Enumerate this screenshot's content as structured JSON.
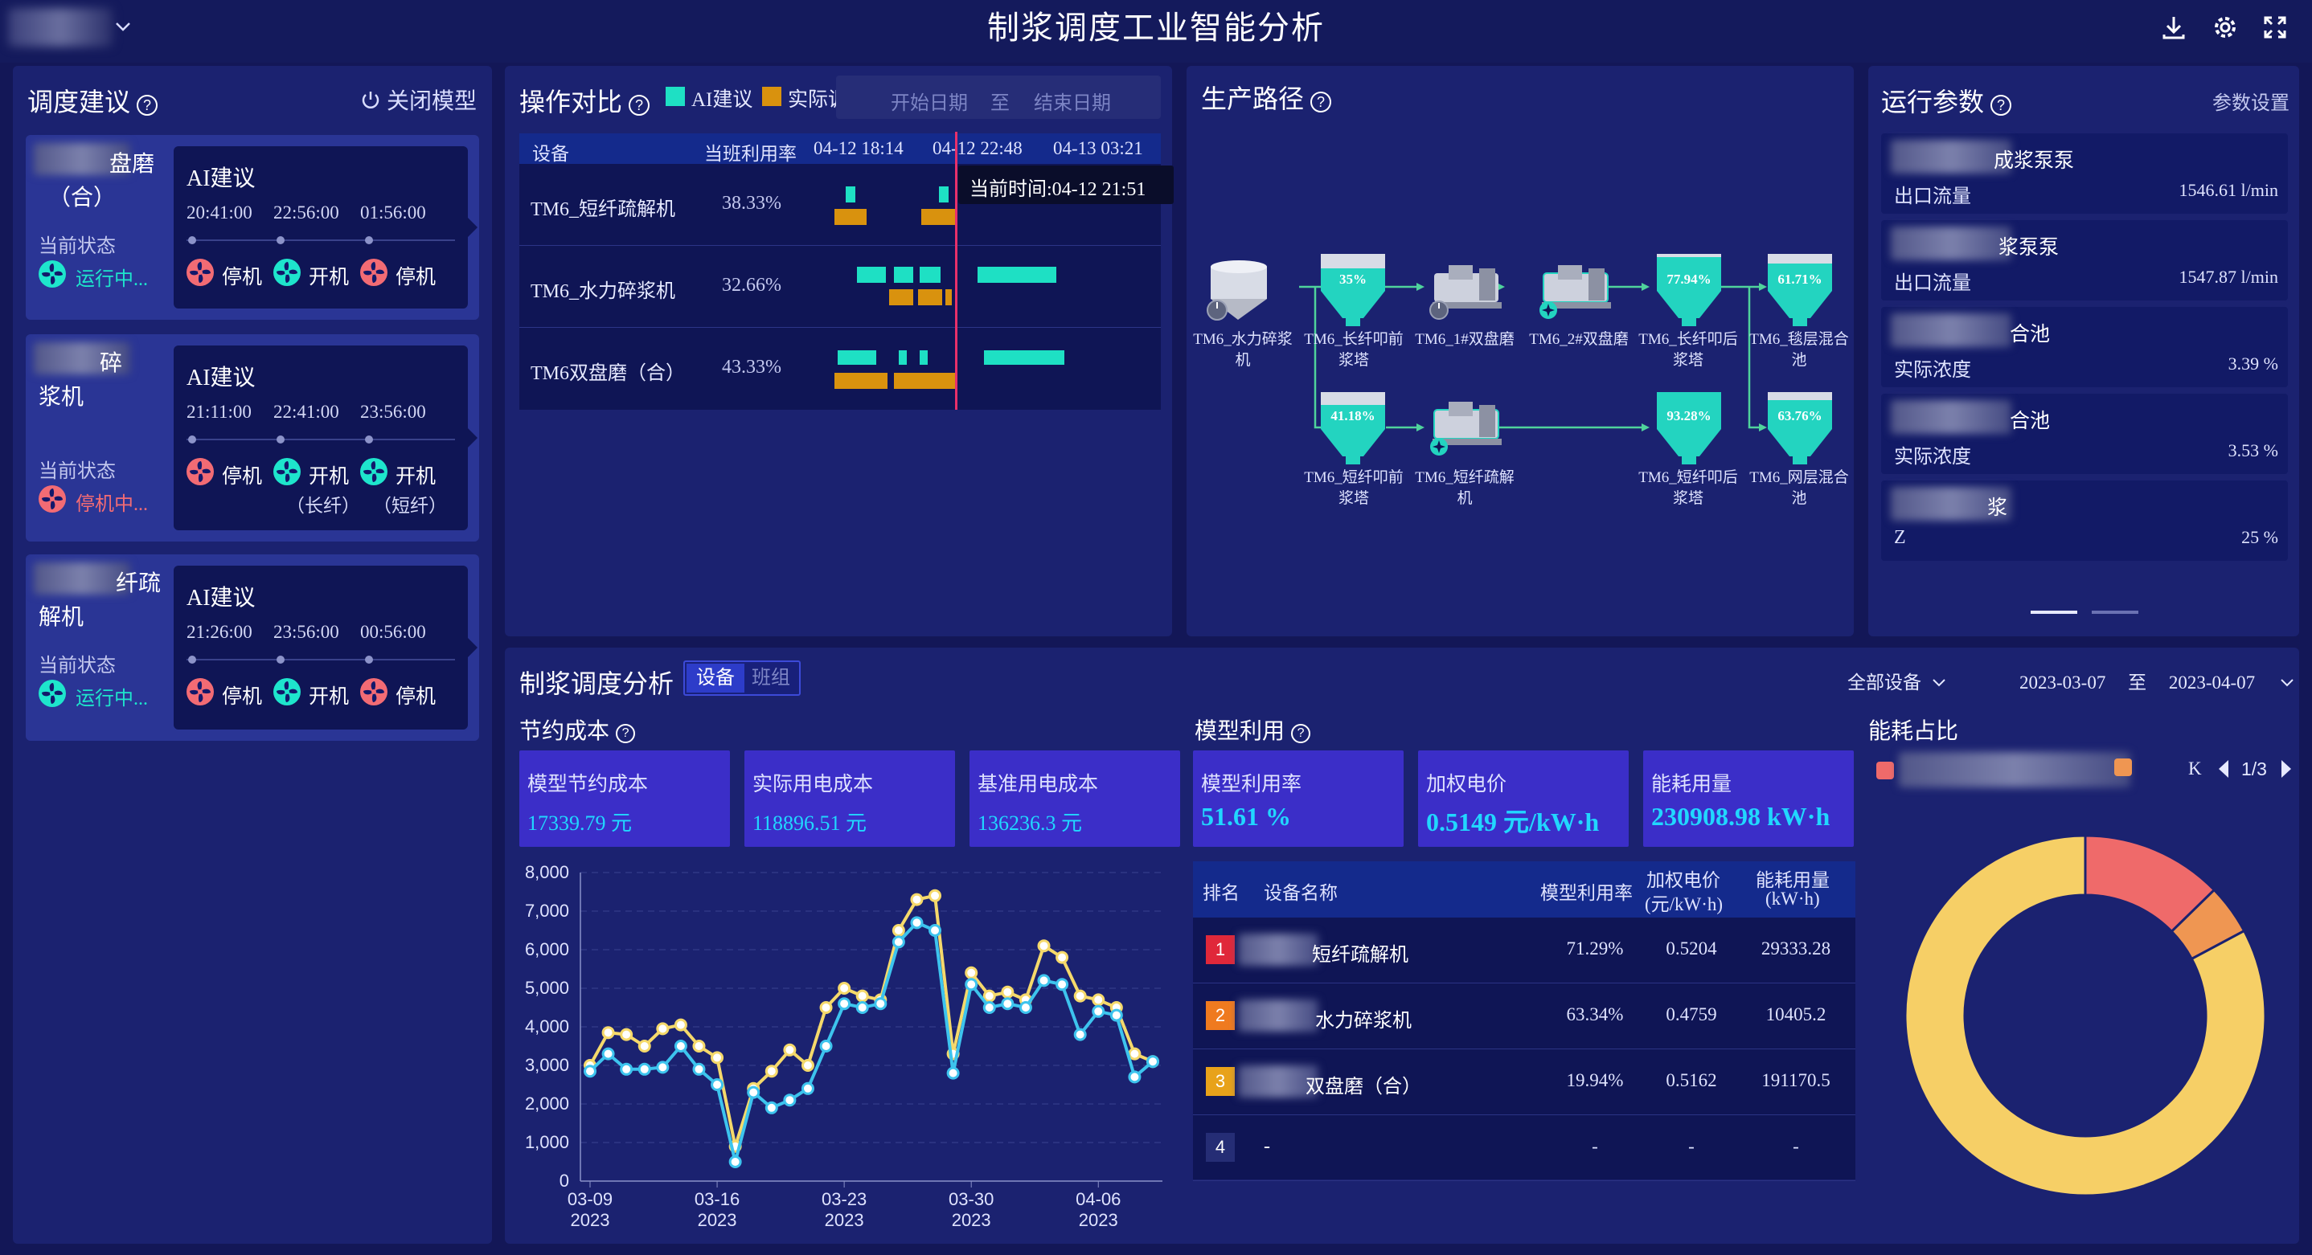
{
  "header": {
    "title": "制浆调度工业智能分析",
    "icons": [
      "download-icon",
      "gear-icon",
      "fullscreen-icon"
    ]
  },
  "dispatch": {
    "title": "调度建议",
    "close_model": "关闭模型",
    "cards": [
      {
        "name_line1": "盘磨",
        "name_line2": "（合）",
        "status_label": "当前状态",
        "status": "运行中...",
        "status_color": "#1ee5cc",
        "ai_label": "AI建议",
        "times": [
          "20:41:00",
          "22:56:00",
          "01:56:00"
        ],
        "actions": [
          {
            "label": "停机",
            "kind": "stop"
          },
          {
            "label": "开机",
            "kind": "start"
          },
          {
            "label": "停机",
            "kind": "stop"
          }
        ]
      },
      {
        "name_line1": "碎",
        "name_line2": "浆机",
        "status_label": "当前状态",
        "status": "停机中...",
        "status_color": "#f26b74",
        "ai_label": "AI建议",
        "times": [
          "21:11:00",
          "22:41:00",
          "23:56:00"
        ],
        "actions": [
          {
            "label": "停机",
            "kind": "stop",
            "sub": ""
          },
          {
            "label": "开机",
            "kind": "start",
            "sub": "（长纤）"
          },
          {
            "label": "开机",
            "kind": "start",
            "sub": "（短纤）"
          }
        ]
      },
      {
        "name_line1": "纤疏",
        "name_line2": "解机",
        "status_label": "当前状态",
        "status": "运行中...",
        "status_color": "#1ee5cc",
        "ai_label": "AI建议",
        "times": [
          "21:26:00",
          "23:56:00",
          "00:56:00"
        ],
        "actions": [
          {
            "label": "停机",
            "kind": "stop"
          },
          {
            "label": "开机",
            "kind": "start"
          },
          {
            "label": "停机",
            "kind": "stop"
          }
        ]
      }
    ]
  },
  "opcompare": {
    "title": "操作对比",
    "legend_ai": "AI建议",
    "legend_actual": "实际调度",
    "start_date": "开始日期",
    "to": "至",
    "end_date": "结束日期",
    "col_device": "设备",
    "col_util": "当班利用率",
    "time_ticks": [
      "04-12 18:14",
      "04-12 22:48",
      "04-13 03:21"
    ],
    "tooltip": "当前时间:04-12 21:51",
    "rows": [
      {
        "device": "TM6_短纤疏解机",
        "util": "38.33%"
      },
      {
        "device": "TM6_水力碎浆机",
        "util": "32.66%"
      },
      {
        "device": "TM6双盘磨（合）",
        "util": "43.33%"
      }
    ]
  },
  "path": {
    "title": "生产路径",
    "nodes": [
      {
        "label1": "TM6_水力碎浆",
        "label2": "机"
      },
      {
        "label1": "TM6_长纤叩前",
        "label2": "浆塔",
        "pct": "35%"
      },
      {
        "label1": "TM6_1#双盘磨",
        "label2": ""
      },
      {
        "label1": "TM6_2#双盘磨",
        "label2": ""
      },
      {
        "label1": "TM6_长纤叩后",
        "label2": "浆塔",
        "pct": "77.94%"
      },
      {
        "label1": "TM6_毯层混合",
        "label2": "池",
        "pct": "61.71%"
      },
      {
        "label1": "TM6_短纤叩前",
        "label2": "浆塔",
        "pct": "41.18%"
      },
      {
        "label1": "TM6_短纤疏解",
        "label2": "机"
      },
      {
        "label1": "TM6_短纤叩后",
        "label2": "浆塔",
        "pct": "93.28%"
      },
      {
        "label1": "TM6_网层混合",
        "label2": "池",
        "pct": "63.76%"
      }
    ]
  },
  "params": {
    "title": "运行参数",
    "settings": "参数设置",
    "items": [
      {
        "name": "成浆泵泵",
        "key": "出口流量",
        "value": "1546.61 l/min"
      },
      {
        "name": "浆泵泵",
        "key": "出口流量",
        "value": "1547.87 l/min"
      },
      {
        "name": "合池",
        "key": "实际浓度",
        "value": "3.39 %"
      },
      {
        "name": "合池",
        "key": "实际浓度",
        "value": "3.53 %"
      },
      {
        "name": "浆",
        "key": "Z",
        "value": "25 %"
      }
    ]
  },
  "analysis": {
    "title": "制浆调度分析",
    "tab_device": "设备",
    "tab_shift": "班组",
    "filter_device": "全部设备",
    "date_from": "2023-03-07",
    "date_to_label": "至",
    "date_to": "2023-04-07",
    "saving_title": "节约成本",
    "saving_stats": [
      {
        "label": "模型节约成本",
        "value": "17339.79 元"
      },
      {
        "label": "实际用电成本",
        "value": "118896.51 元"
      },
      {
        "label": "基准用电成本",
        "value": "136236.3 元"
      }
    ],
    "model_title": "模型利用",
    "model_stats": [
      {
        "label": "模型利用率",
        "value": "51.61 %"
      },
      {
        "label": "加权电价",
        "value": "0.5149 元/kW·h"
      },
      {
        "label": "能耗用量",
        "value": "230908.98 kW·h"
      }
    ],
    "rank_cols": {
      "rank": "排名",
      "name": "设备名称",
      "util": "模型利用率",
      "price1": "加权电价",
      "price2": "(元/kW·h)",
      "energy1": "能耗用量",
      "energy2": "(kW·h)"
    },
    "rank_rows": [
      {
        "rank": "1",
        "color": "#e0283a",
        "name": "短纤疏解机",
        "util": "71.29%",
        "price": "0.5204",
        "energy": "29333.28"
      },
      {
        "rank": "2",
        "color": "#ef7a1f",
        "name": "水力碎浆机",
        "util": "63.34%",
        "price": "0.4759",
        "energy": "10405.2"
      },
      {
        "rank": "3",
        "color": "#e8a21a",
        "name": "双盘磨（合）",
        "util": "19.94%",
        "price": "0.5162",
        "energy": "191170.5"
      },
      {
        "rank": "4",
        "color": "#252d75",
        "name": "-",
        "util": "-",
        "price": "-",
        "energy": "-"
      }
    ],
    "energy_title": "能耗占比",
    "energy_pager": "1/3",
    "energy_legend_tail": "K"
  },
  "chart_data": {
    "type": "line",
    "ylim": [
      0,
      8000
    ],
    "yticks": [
      "0",
      "1,000",
      "2,000",
      "3,000",
      "4,000",
      "5,000",
      "6,000",
      "7,000",
      "8,000"
    ],
    "xtick_labels": [
      {
        "line1": "03-09",
        "line2": "2023"
      },
      {
        "line1": "03-16",
        "line2": "2023"
      },
      {
        "line1": "03-23",
        "line2": "2023"
      },
      {
        "line1": "03-30",
        "line2": "2023"
      },
      {
        "line1": "04-06",
        "line2": "2023"
      }
    ],
    "xtick_index": [
      0,
      7,
      14,
      21,
      28
    ],
    "series": [
      {
        "color": "#f5d96b",
        "values": [
          3000,
          3850,
          3800,
          3500,
          3950,
          4050,
          3500,
          3200,
          900,
          2400,
          2850,
          3400,
          3000,
          4500,
          5000,
          4800,
          4700,
          6500,
          7300,
          7400,
          3300,
          5400,
          4800,
          4900,
          4700,
          6100,
          5800,
          4800,
          4700,
          4500,
          3300,
          3100
        ]
      },
      {
        "color": "#3dc4ee",
        "values": [
          2850,
          3300,
          2900,
          2900,
          2950,
          3500,
          2900,
          2500,
          500,
          2300,
          1900,
          2100,
          2400,
          3500,
          4600,
          4500,
          4600,
          6200,
          6700,
          6500,
          2800,
          5100,
          4500,
          4600,
          4500,
          5200,
          5100,
          3800,
          4400,
          4300,
          2700,
          3100
        ]
      }
    ],
    "donut": {
      "type": "pie",
      "slices": [
        {
          "value": 12.7,
          "color": "#ef6a6a"
        },
        {
          "value": 4.5,
          "color": "#ef9652"
        },
        {
          "value": 82.8,
          "color": "#f6cf66"
        }
      ]
    }
  }
}
